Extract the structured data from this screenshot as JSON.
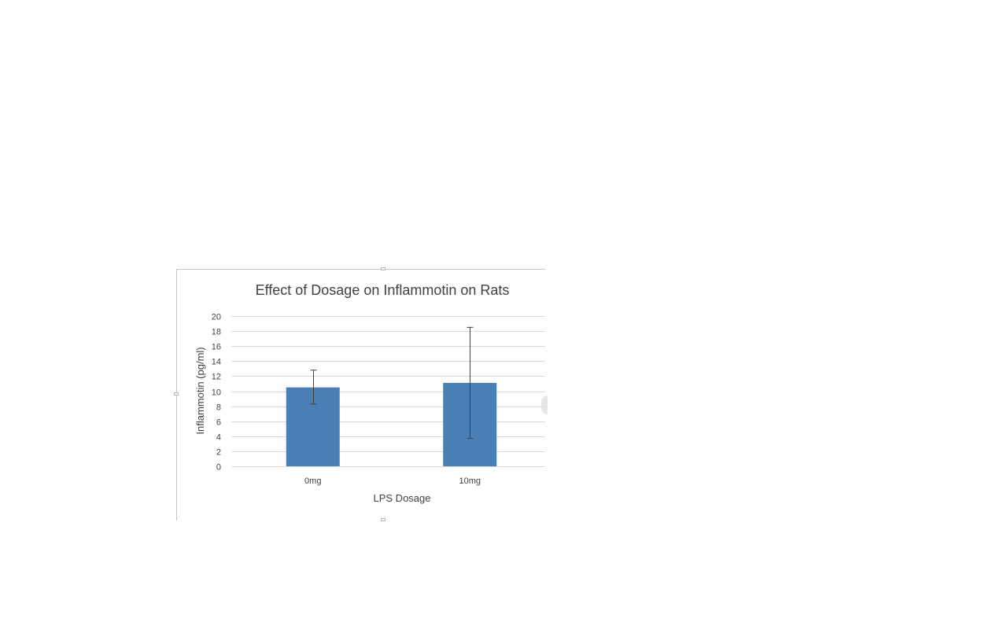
{
  "chart_data": {
    "type": "bar",
    "title": "Effect of Dosage on Inflammotin on Rats",
    "xlabel": "LPS Dosage",
    "ylabel": "Inflammotin (pg/ml)",
    "categories": [
      "0mg",
      "10mg"
    ],
    "values": [
      10.5,
      11.1
    ],
    "error_low": [
      8.3,
      3.7
    ],
    "error_high": [
      12.8,
      18.5
    ],
    "ylim": [
      0,
      20
    ],
    "yticks": [
      0,
      2,
      4,
      6,
      8,
      10,
      12,
      14,
      16,
      18,
      20
    ],
    "grid": true,
    "legend": "none",
    "bar_color": "#4a7fb5",
    "grid_color": "#d9d9d9",
    "text_color": "#404040"
  }
}
